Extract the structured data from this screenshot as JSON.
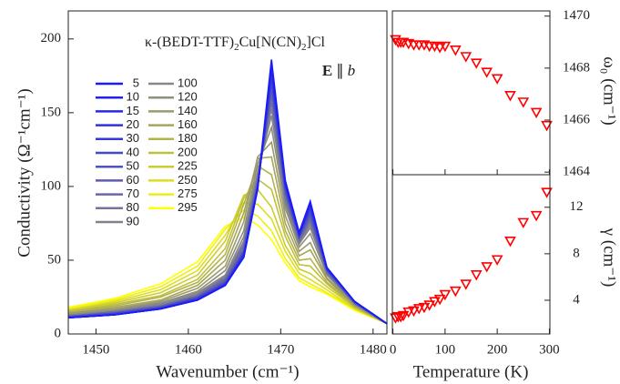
{
  "chart_data": [
    {
      "type": "line",
      "title": [
        "κ-(BEDT-TTF)",
        "2",
        "Cu[N(CN)",
        "2",
        "]Cl"
      ],
      "annotation": [
        "E",
        "∥",
        "b"
      ],
      "xlabel": "Wavenumber (cm⁻¹)",
      "ylabel": "Conductivity (Ω⁻¹cm⁻¹)",
      "x": [
        1447,
        1452,
        1457,
        1461,
        1464,
        1466,
        1467.5,
        1469,
        1470.5,
        1472,
        1473.2,
        1475,
        1478,
        1481.5
      ],
      "xlim": [
        1447,
        1481.5
      ],
      "xticks": [
        1450,
        1460,
        1470,
        1480
      ],
      "ylim": [
        0,
        219
      ],
      "yticks": [
        0,
        50,
        100,
        150,
        200
      ],
      "series": [
        {
          "name": "5",
          "color": "#1a1aff",
          "values": [
            11,
            13,
            17,
            23,
            33,
            52,
            99,
            186,
            104,
            69,
            90,
            45,
            22,
            7
          ]
        },
        {
          "name": "10",
          "color": "#2020f0",
          "values": [
            11,
            13,
            17,
            23,
            33,
            52,
            98,
            183,
            103,
            68,
            89,
            45,
            22,
            7
          ]
        },
        {
          "name": "15",
          "color": "#2828e8",
          "values": [
            11,
            13,
            17,
            23,
            33,
            52,
            98,
            181,
            102,
            68,
            88,
            45,
            22,
            7
          ]
        },
        {
          "name": "20",
          "color": "#3030e0",
          "values": [
            11,
            13,
            17,
            23,
            33,
            53,
            98,
            179,
            101,
            67,
            87,
            44,
            22,
            7
          ]
        },
        {
          "name": "30",
          "color": "#3838d8",
          "values": [
            11,
            13,
            17,
            24,
            34,
            54,
            99,
            176,
            100,
            67,
            86,
            44,
            22,
            7
          ]
        },
        {
          "name": "40",
          "color": "#4444cc",
          "values": [
            11,
            14,
            18,
            24,
            34,
            55,
            100,
            172,
            99,
            66,
            84,
            44,
            22,
            7
          ]
        },
        {
          "name": "50",
          "color": "#5050c0",
          "values": [
            12,
            14,
            18,
            25,
            35,
            56,
            101,
            169,
            97,
            66,
            82,
            43,
            21,
            7
          ]
        },
        {
          "name": "60",
          "color": "#5c5cb4",
          "values": [
            12,
            14,
            18,
            25,
            36,
            57,
            102,
            165,
            96,
            65,
            80,
            43,
            21,
            7
          ]
        },
        {
          "name": "70",
          "color": "#6868a8",
          "values": [
            12,
            15,
            19,
            26,
            37,
            59,
            104,
            161,
            94,
            64,
            78,
            42,
            21,
            7
          ]
        },
        {
          "name": "80",
          "color": "#74749c",
          "values": [
            12,
            15,
            19,
            26,
            38,
            61,
            105,
            157,
            92,
            63,
            76,
            42,
            21,
            7
          ]
        },
        {
          "name": "90",
          "color": "#808090",
          "values": [
            12,
            15,
            20,
            27,
            39,
            63,
            107,
            153,
            90,
            62,
            74,
            41,
            21,
            7
          ]
        },
        {
          "name": "100",
          "color": "#888888",
          "values": [
            13,
            16,
            21,
            28,
            40,
            66,
            110,
            148,
            88,
            61,
            72,
            41,
            20,
            7
          ]
        },
        {
          "name": "120",
          "color": "#8f8f7a",
          "values": [
            13,
            16,
            21,
            29,
            43,
            70,
            115,
            140,
            85,
            59,
            68,
            40,
            20,
            7
          ]
        },
        {
          "name": "140",
          "color": "#9a9a6a",
          "values": [
            14,
            17,
            22,
            31,
            46,
            76,
            120,
            130,
            80,
            56,
            62,
            38,
            20,
            7
          ]
        },
        {
          "name": "160",
          "color": "#a6a65a",
          "values": [
            14,
            18,
            23,
            33,
            50,
            82,
            119,
            120,
            75,
            53,
            57,
            37,
            19,
            7
          ]
        },
        {
          "name": "180",
          "color": "#b3b34a",
          "values": [
            15,
            19,
            25,
            35,
            54,
            88,
            114,
            108,
            70,
            50,
            51,
            35,
            19,
            7
          ]
        },
        {
          "name": "200",
          "color": "#c0c03c",
          "values": [
            15,
            20,
            26,
            37,
            58,
            92,
            105,
            98,
            66,
            47,
            46,
            34,
            18,
            7
          ]
        },
        {
          "name": "225",
          "color": "#cccc30",
          "values": [
            16,
            21,
            28,
            40,
            63,
            94,
            98,
            86,
            60,
            44,
            41,
            32,
            18,
            7
          ]
        },
        {
          "name": "250",
          "color": "#dddd22",
          "values": [
            16,
            22,
            30,
            43,
            67,
            89,
            88,
            78,
            56,
            41,
            37,
            30,
            17,
            7
          ]
        },
        {
          "name": "275",
          "color": "#eeee14",
          "values": [
            17,
            23,
            32,
            46,
            71,
            84,
            80,
            70,
            51,
            38,
            34,
            28,
            17,
            7
          ]
        },
        {
          "name": "295",
          "color": "#ffff00",
          "values": [
            18,
            24,
            34,
            49,
            73,
            79,
            74,
            64,
            48,
            36,
            32,
            27,
            16,
            7
          ]
        }
      ]
    },
    {
      "type": "scatter",
      "ylabel": "ω₀ (cm⁻¹)",
      "color": "#ff0000",
      "x": [
        5,
        10,
        15,
        20,
        30,
        40,
        50,
        60,
        70,
        80,
        90,
        100,
        120,
        140,
        160,
        180,
        200,
        225,
        250,
        275,
        295
      ],
      "values": [
        1469.1,
        1469.0,
        1469.0,
        1469.0,
        1468.95,
        1468.9,
        1468.9,
        1468.9,
        1468.85,
        1468.85,
        1468.8,
        1468.85,
        1468.7,
        1468.45,
        1468.2,
        1467.85,
        1467.6,
        1466.95,
        1466.7,
        1466.3,
        1465.8
      ],
      "xlim": [
        -1,
        301
      ],
      "xticks": [
        0,
        100,
        200,
        300
      ],
      "ylim": [
        1463.9,
        1470.2
      ],
      "yticks": [
        1464,
        1466,
        1468,
        1470
      ]
    },
    {
      "type": "scatter",
      "xlabel": "Temperature (K)",
      "ylabel": "γ (cm⁻¹)",
      "color": "#ff0000",
      "x": [
        5,
        10,
        15,
        20,
        30,
        40,
        50,
        60,
        70,
        80,
        90,
        100,
        120,
        140,
        160,
        180,
        200,
        225,
        250,
        275,
        295
      ],
      "values": [
        2.5,
        2.6,
        2.6,
        2.7,
        3.0,
        3.1,
        3.3,
        3.4,
        3.6,
        3.9,
        4.1,
        4.5,
        4.8,
        5.4,
        6.2,
        6.9,
        7.5,
        9.1,
        10.7,
        11.3,
        13.3
      ],
      "xlim": [
        -1,
        301
      ],
      "xticks": [
        0,
        100,
        200,
        300
      ],
      "ylim": [
        1.1,
        14.8
      ],
      "yticks": [
        4,
        8,
        12
      ]
    }
  ]
}
